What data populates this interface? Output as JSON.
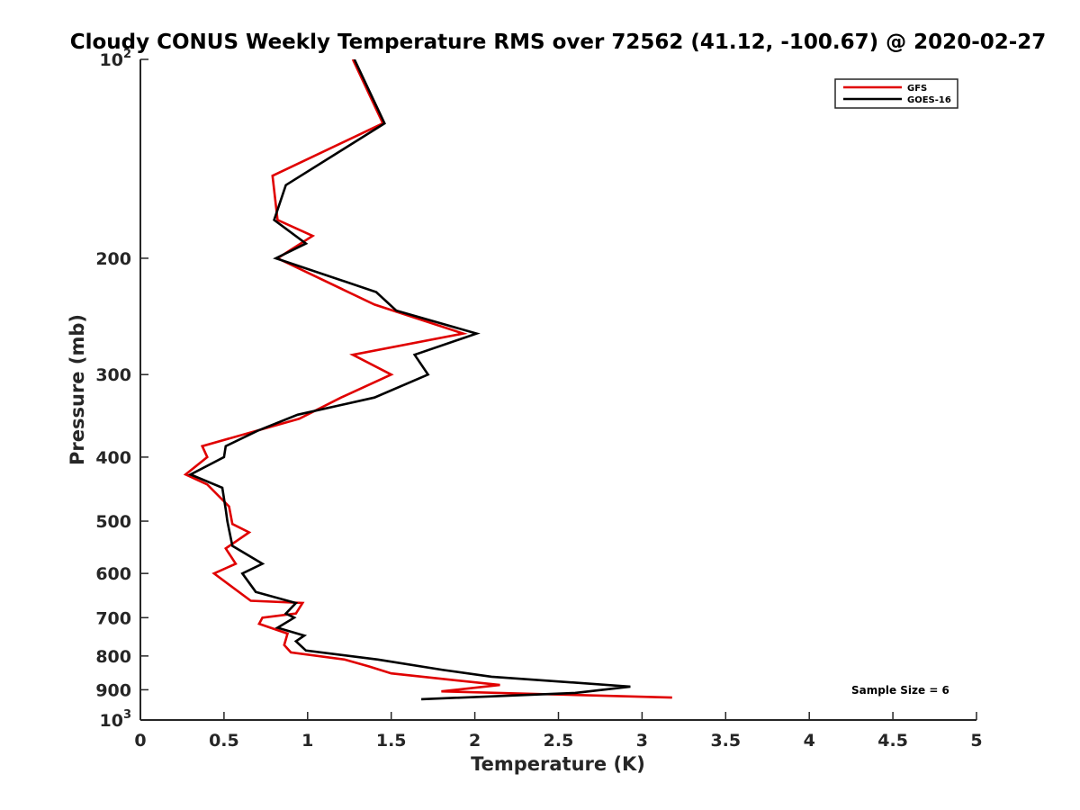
{
  "chart_data": {
    "type": "line",
    "title": "Cloudy CONUS Weekly Temperature RMS over 72562 (41.12, -100.67) @ 2020-02-27",
    "xlabel": "Temperature (K)",
    "ylabel": "Pressure (mb)",
    "xlim": [
      0,
      5
    ],
    "ylim": [
      100,
      1000
    ],
    "yscale": "log",
    "yreversed": true,
    "grid": false,
    "legend_position": "top-right",
    "x_ticks": [
      0,
      0.5,
      1,
      1.5,
      2,
      2.5,
      3,
      3.5,
      4,
      4.5,
      5
    ],
    "x_tick_labels": [
      "0",
      "0.5",
      "1",
      "1.5",
      "2",
      "2.5",
      "3",
      "3.5",
      "4",
      "4.5",
      "5"
    ],
    "y_ticks": [
      100,
      200,
      300,
      400,
      500,
      600,
      700,
      800,
      900,
      1000
    ],
    "y_tick_labels": [
      {
        "base": "10",
        "exp": "2"
      },
      {
        "base": "200",
        "exp": ""
      },
      {
        "base": "300",
        "exp": ""
      },
      {
        "base": "400",
        "exp": ""
      },
      {
        "base": "500",
        "exp": ""
      },
      {
        "base": "600",
        "exp": ""
      },
      {
        "base": "700",
        "exp": ""
      },
      {
        "base": "800",
        "exp": ""
      },
      {
        "base": "900",
        "exp": ""
      },
      {
        "base": "10",
        "exp": "3"
      }
    ],
    "annotation": "Sample Size = 6",
    "series": [
      {
        "name": "GFS",
        "color": "#e00000",
        "points": [
          [
            1.27,
            100
          ],
          [
            1.45,
            125
          ],
          [
            0.79,
            150
          ],
          [
            0.82,
            175
          ],
          [
            1.03,
            185
          ],
          [
            0.82,
            200
          ],
          [
            1.4,
            235
          ],
          [
            1.93,
            260
          ],
          [
            1.27,
            280
          ],
          [
            1.5,
            300
          ],
          [
            1.2,
            325
          ],
          [
            0.95,
            350
          ],
          [
            0.37,
            385
          ],
          [
            0.4,
            400
          ],
          [
            0.27,
            425
          ],
          [
            0.4,
            440
          ],
          [
            0.53,
            475
          ],
          [
            0.55,
            505
          ],
          [
            0.65,
            520
          ],
          [
            0.51,
            550
          ],
          [
            0.57,
            580
          ],
          [
            0.44,
            600
          ],
          [
            0.66,
            660
          ],
          [
            0.97,
            665
          ],
          [
            0.93,
            690
          ],
          [
            0.73,
            700
          ],
          [
            0.71,
            715
          ],
          [
            0.88,
            740
          ],
          [
            0.86,
            770
          ],
          [
            0.9,
            790
          ],
          [
            1.22,
            810
          ],
          [
            1.37,
            830
          ],
          [
            1.5,
            850
          ],
          [
            2.15,
            885
          ],
          [
            1.8,
            905
          ],
          [
            3.18,
            925
          ]
        ]
      },
      {
        "name": "GOES-16",
        "color": "#000000",
        "points": [
          [
            1.28,
            100
          ],
          [
            1.46,
            125
          ],
          [
            0.87,
            155
          ],
          [
            0.8,
            175
          ],
          [
            0.99,
            190
          ],
          [
            0.81,
            200
          ],
          [
            1.41,
            225
          ],
          [
            1.53,
            240
          ],
          [
            2.01,
            260
          ],
          [
            1.64,
            280
          ],
          [
            1.72,
            300
          ],
          [
            1.4,
            325
          ],
          [
            0.94,
            345
          ],
          [
            0.7,
            365
          ],
          [
            0.51,
            385
          ],
          [
            0.5,
            400
          ],
          [
            0.3,
            425
          ],
          [
            0.49,
            445
          ],
          [
            0.51,
            480
          ],
          [
            0.52,
            500
          ],
          [
            0.53,
            515
          ],
          [
            0.55,
            545
          ],
          [
            0.73,
            580
          ],
          [
            0.61,
            600
          ],
          [
            0.69,
            640
          ],
          [
            0.93,
            665
          ],
          [
            0.87,
            690
          ],
          [
            0.92,
            700
          ],
          [
            0.82,
            725
          ],
          [
            0.98,
            745
          ],
          [
            0.93,
            760
          ],
          [
            0.99,
            785
          ],
          [
            1.42,
            810
          ],
          [
            1.81,
            840
          ],
          [
            2.1,
            860
          ],
          [
            2.93,
            890
          ],
          [
            2.6,
            910
          ],
          [
            1.68,
            930
          ]
        ]
      }
    ]
  }
}
